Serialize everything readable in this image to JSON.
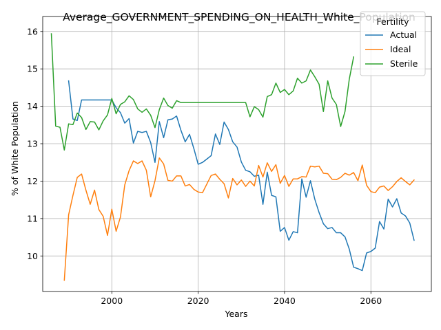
{
  "chart_data": {
    "type": "line",
    "title": "Average_GOVERNMENT_SPENDING_ON_HEALTH_White_Population",
    "xlabel": "Years",
    "ylabel": "% of White Population",
    "xlim": [
      1984,
      2074
    ],
    "ylim": [
      9.05,
      16.4
    ],
    "xticks": [
      2000,
      2020,
      2040,
      2060
    ],
    "yticks": [
      10,
      11,
      12,
      13,
      14,
      15,
      16
    ],
    "grid": true,
    "legend": {
      "title": "Fertility",
      "placement": "top-right"
    },
    "series": [
      {
        "name": "Actual",
        "color": "#1f77b4",
        "x": [
          1990,
          1991,
          1992,
          1993,
          1994,
          1995,
          1996,
          1997,
          1998,
          1999,
          2000,
          2001,
          2002,
          2003,
          2004,
          2005,
          2006,
          2007,
          2008,
          2009,
          2010,
          2011,
          2012,
          2013,
          2014,
          2015,
          2016,
          2017,
          2018,
          2019,
          2020,
          2021,
          2022,
          2023,
          2024,
          2025,
          2026,
          2027,
          2028,
          2029,
          2030,
          2031,
          2032,
          2033,
          2034,
          2035,
          2036,
          2037,
          2038,
          2039,
          2040,
          2041,
          2042,
          2043,
          2044,
          2045,
          2046,
          2047,
          2048,
          2049,
          2050,
          2051,
          2052,
          2053,
          2054,
          2055,
          2056,
          2057,
          2058,
          2059,
          2060,
          2061,
          2062,
          2063,
          2064,
          2065,
          2066,
          2067,
          2068,
          2069,
          2070
        ],
        "values": [
          14.68,
          13.66,
          13.62,
          14.17,
          14.17,
          14.17,
          14.17,
          14.17,
          14.17,
          14.17,
          14.17,
          13.96,
          13.83,
          13.55,
          13.67,
          13.02,
          13.33,
          13.3,
          13.33,
          13.03,
          12.5,
          13.59,
          13.16,
          13.64,
          13.66,
          13.74,
          13.36,
          13.05,
          13.25,
          12.87,
          12.45,
          12.5,
          12.59,
          12.68,
          13.26,
          12.98,
          13.58,
          13.38,
          13.05,
          12.91,
          12.51,
          12.29,
          12.25,
          12.13,
          12.16,
          11.38,
          12.24,
          11.62,
          11.58,
          10.66,
          10.76,
          10.42,
          10.65,
          10.62,
          12.06,
          11.57,
          12.01,
          11.52,
          11.16,
          10.86,
          10.73,
          10.76,
          10.62,
          10.62,
          10.51,
          10.18,
          9.7,
          9.66,
          9.61,
          10.08,
          10.12,
          10.21,
          10.92,
          10.72,
          11.52,
          11.31,
          11.53,
          11.15,
          11.07,
          10.88,
          10.42
        ]
      },
      {
        "name": "Ideal",
        "color": "#ff7f0e",
        "x": [
          1989,
          1990,
          1991,
          1992,
          1993,
          1994,
          1995,
          1996,
          1997,
          1998,
          1999,
          2000,
          2001,
          2002,
          2003,
          2004,
          2005,
          2006,
          2007,
          2008,
          2009,
          2010,
          2011,
          2012,
          2013,
          2014,
          2015,
          2016,
          2017,
          2018,
          2019,
          2020,
          2021,
          2022,
          2023,
          2024,
          2025,
          2026,
          2027,
          2028,
          2029,
          2030,
          2031,
          2032,
          2033,
          2034,
          2035,
          2036,
          2037,
          2038,
          2039,
          2040,
          2041,
          2042,
          2043,
          2044,
          2045,
          2046,
          2047,
          2048,
          2049,
          2050,
          2051,
          2052,
          2053,
          2054,
          2055,
          2056,
          2057,
          2058,
          2059,
          2060,
          2061,
          2062,
          2063,
          2064,
          2065,
          2066,
          2067,
          2068,
          2069,
          2070
        ],
        "values": [
          9.35,
          11.1,
          11.62,
          12.1,
          12.19,
          11.76,
          11.38,
          11.76,
          11.24,
          11.06,
          10.55,
          11.25,
          10.66,
          11.04,
          11.9,
          12.28,
          12.54,
          12.47,
          12.54,
          12.29,
          11.58,
          12.01,
          12.62,
          12.46,
          12.02,
          12.0,
          12.14,
          12.14,
          11.87,
          11.91,
          11.78,
          11.71,
          11.69,
          11.92,
          12.15,
          12.19,
          12.05,
          11.93,
          11.55,
          12.07,
          11.9,
          12.03,
          11.86,
          12.0,
          11.87,
          12.42,
          12.11,
          12.49,
          12.26,
          12.44,
          11.94,
          12.15,
          11.86,
          12.06,
          12.06,
          12.12,
          12.11,
          12.4,
          12.38,
          12.4,
          12.21,
          12.2,
          12.05,
          12.04,
          12.1,
          12.21,
          12.16,
          12.23,
          12.01,
          12.43,
          11.89,
          11.72,
          11.69,
          11.84,
          11.87,
          11.75,
          11.85,
          11.99,
          12.09,
          11.99,
          11.9,
          12.03
        ]
      },
      {
        "name": "Sterile",
        "color": "#2ca02c",
        "x": [
          1986,
          1987,
          1988,
          1989,
          1990,
          1991,
          1992,
          1993,
          1994,
          1995,
          1996,
          1997,
          1998,
          1999,
          2000,
          2001,
          2002,
          2003,
          2004,
          2005,
          2006,
          2007,
          2008,
          2009,
          2010,
          2011,
          2012,
          2013,
          2014,
          2015,
          2016,
          2017,
          2018,
          2019,
          2020,
          2021,
          2022,
          2023,
          2024,
          2025,
          2026,
          2027,
          2028,
          2029,
          2030,
          2031,
          2032,
          2033,
          2034,
          2035,
          2036,
          2037,
          2038,
          2039,
          2040,
          2041,
          2042,
          2043,
          2044,
          2045,
          2046,
          2047,
          2048,
          2049,
          2050,
          2051,
          2052,
          2053,
          2054,
          2055,
          2056
        ],
        "values": [
          15.94,
          13.47,
          13.44,
          12.83,
          13.53,
          13.51,
          13.82,
          13.7,
          13.38,
          13.59,
          13.58,
          13.37,
          13.61,
          13.77,
          14.21,
          13.8,
          14.05,
          14.12,
          14.28,
          14.18,
          13.93,
          13.84,
          13.93,
          13.76,
          13.43,
          13.91,
          14.22,
          14.02,
          13.95,
          14.15,
          14.1,
          14.1,
          14.1,
          14.1,
          14.1,
          14.1,
          14.1,
          14.1,
          14.1,
          14.1,
          14.1,
          14.1,
          14.1,
          14.1,
          14.1,
          14.1,
          13.72,
          13.99,
          13.91,
          13.71,
          14.26,
          14.31,
          14.62,
          14.37,
          14.45,
          14.31,
          14.41,
          14.75,
          14.62,
          14.68,
          14.97,
          14.79,
          14.59,
          13.86,
          14.68,
          14.22,
          14.05,
          13.46,
          13.86,
          14.73,
          15.32
        ]
      }
    ]
  }
}
